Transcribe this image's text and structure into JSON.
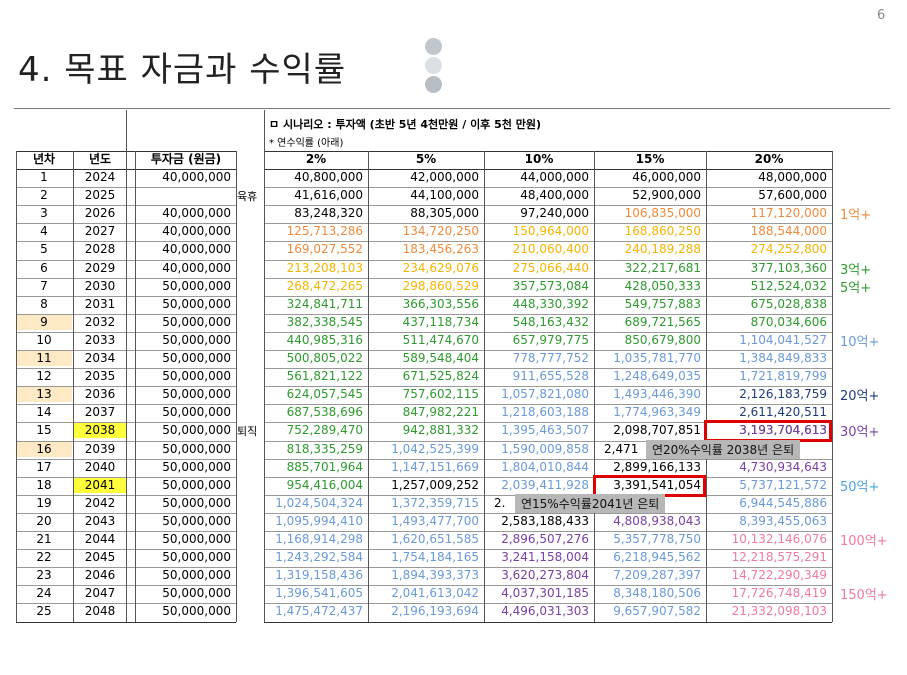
{
  "page_number": "6",
  "title": "4. 목표 자금과 수익률",
  "scenario": "ㅁ 시나리오 : 투자액 (초반 5년 4천만원 / 이후 5천 만원)",
  "note": "* 연수익률 (아래)",
  "headers": [
    "년차",
    "년도",
    "투자금 (원금)",
    "2%",
    "5%",
    "10%",
    "15%",
    "20%"
  ],
  "mid_labels": {
    "r2": "육휴",
    "r15": "퇴직"
  },
  "rows": [
    {
      "n": "1",
      "y": "2024",
      "p": "40,000,000",
      "v": [
        "40,800,000",
        "42,000,000",
        "44,000,000",
        "46,000,000",
        "48,000,000"
      ]
    },
    {
      "n": "2",
      "y": "2025",
      "p": "",
      "v": [
        "41,616,000",
        "44,100,000",
        "48,400,000",
        "52,900,000",
        "57,600,000"
      ]
    },
    {
      "n": "3",
      "y": "2026",
      "p": "40,000,000",
      "v": [
        "83,248,320",
        "88,305,000",
        "97,240,000",
        "106,835,000",
        "117,120,000"
      ]
    },
    {
      "n": "4",
      "y": "2027",
      "p": "40,000,000",
      "v": [
        "125,713,286",
        "134,720,250",
        "150,964,000",
        "168,860,250",
        "188,544,000"
      ]
    },
    {
      "n": "5",
      "y": "2028",
      "p": "40,000,000",
      "v": [
        "169,027,552",
        "183,456,263",
        "210,060,400",
        "240,189,288",
        "274,252,800"
      ]
    },
    {
      "n": "6",
      "y": "2029",
      "p": "40,000,000",
      "v": [
        "213,208,103",
        "234,629,076",
        "275,066,440",
        "322,217,681",
        "377,103,360"
      ]
    },
    {
      "n": "7",
      "y": "2030",
      "p": "50,000,000",
      "v": [
        "268,472,265",
        "298,860,529",
        "357,573,084",
        "428,050,333",
        "512,524,032"
      ]
    },
    {
      "n": "8",
      "y": "2031",
      "p": "50,000,000",
      "v": [
        "324,841,711",
        "366,303,556",
        "448,330,392",
        "549,757,883",
        "675,028,838"
      ]
    },
    {
      "n": "9",
      "y": "2032",
      "p": "50,000,000",
      "v": [
        "382,338,545",
        "437,118,734",
        "548,163,432",
        "689,721,565",
        "870,034,606"
      ]
    },
    {
      "n": "10",
      "y": "2033",
      "p": "50,000,000",
      "v": [
        "440,985,316",
        "511,474,670",
        "657,979,775",
        "850,679,800",
        "1,104,041,527"
      ]
    },
    {
      "n": "11",
      "y": "2034",
      "p": "50,000,000",
      "v": [
        "500,805,022",
        "589,548,404",
        "778,777,752",
        "1,035,781,770",
        "1,384,849,833"
      ]
    },
    {
      "n": "12",
      "y": "2035",
      "p": "50,000,000",
      "v": [
        "561,821,122",
        "671,525,824",
        "911,655,528",
        "1,248,649,035",
        "1,721,819,799"
      ]
    },
    {
      "n": "13",
      "y": "2036",
      "p": "50,000,000",
      "v": [
        "624,057,545",
        "757,602,115",
        "1,057,821,080",
        "1,493,446,390",
        "2,126,183,759"
      ]
    },
    {
      "n": "14",
      "y": "2037",
      "p": "50,000,000",
      "v": [
        "687,538,696",
        "847,982,221",
        "1,218,603,188",
        "1,774,963,349",
        "2,611,420,511"
      ]
    },
    {
      "n": "15",
      "y": "2038",
      "p": "50,000,000",
      "v": [
        "752,289,470",
        "942,881,332",
        "1,395,463,507",
        "2,098,707,851",
        "3,193,704,613"
      ]
    },
    {
      "n": "16",
      "y": "2039",
      "p": "50,000,000",
      "v": [
        "818,335,259",
        "1,042,525,399",
        "1,590,009,858",
        "2,471",
        "연20%수익률 2038년 은퇴"
      ]
    },
    {
      "n": "17",
      "y": "2040",
      "p": "50,000,000",
      "v": [
        "885,701,964",
        "1,147,151,669",
        "1,804,010,844",
        "2,899,166,133",
        "4,730,934,643"
      ]
    },
    {
      "n": "18",
      "y": "2041",
      "p": "50,000,000",
      "v": [
        "954,416,004",
        "1,257,009,252",
        "2,039,411,928",
        "3,391,541,054",
        "5,737,121,572"
      ]
    },
    {
      "n": "19",
      "y": "2042",
      "p": "50,000,000",
      "v": [
        "1,024,504,324",
        "1,372,359,715",
        "2.",
        "연15%수익률2041년 은퇴",
        "6,944,545,886"
      ]
    },
    {
      "n": "20",
      "y": "2043",
      "p": "50,000,000",
      "v": [
        "1,095,994,410",
        "1,493,477,700",
        "2,583,188,433",
        "4,808,938,043",
        "8,393,455,063"
      ]
    },
    {
      "n": "21",
      "y": "2044",
      "p": "50,000,000",
      "v": [
        "1,168,914,298",
        "1,620,651,585",
        "2,896,507,276",
        "5,357,778,750",
        "10,132,146,076"
      ]
    },
    {
      "n": "22",
      "y": "2045",
      "p": "50,000,000",
      "v": [
        "1,243,292,584",
        "1,754,184,165",
        "3,241,158,004",
        "6,218,945,562",
        "12,218,575,291"
      ]
    },
    {
      "n": "23",
      "y": "2046",
      "p": "50,000,000",
      "v": [
        "1,319,158,436",
        "1,894,393,373",
        "3,620,273,804",
        "7,209,287,397",
        "14,722,290,349"
      ]
    },
    {
      "n": "24",
      "y": "2047",
      "p": "50,000,000",
      "v": [
        "1,396,541,605",
        "2,041,613,042",
        "4,037,301,185",
        "8,348,180,506",
        "17,726,748,419"
      ]
    },
    {
      "n": "25",
      "y": "2048",
      "p": "50,000,000",
      "v": [
        "1,475,472,437",
        "2,196,193,694",
        "4,496,031,303",
        "9,657,907,582",
        "21,332,098,103"
      ]
    }
  ],
  "side_labels": [
    {
      "row": 3,
      "text": "1억+",
      "color": "#f08a3c"
    },
    {
      "row": 6,
      "text": "3억+",
      "color": "#2e9a2e"
    },
    {
      "row": 7,
      "text": "5억+",
      "color": "#2e9a2e"
    },
    {
      "row": 10,
      "text": "10억+",
      "color": "#6a9ad8"
    },
    {
      "row": 13,
      "text": "20억+",
      "color": "#1f3a7a"
    },
    {
      "row": 15,
      "text": "30억+",
      "color": "#7a3fa6"
    },
    {
      "row": 18,
      "text": "50억+",
      "color": "#4aa3df"
    },
    {
      "row": 21,
      "text": "100억+",
      "color": "#f07aa0"
    },
    {
      "row": 24,
      "text": "150억+",
      "color": "#f07aa0"
    }
  ],
  "callouts": {
    "c20": "연20%수익률 2038년 은퇴",
    "c15": "연15%수익률2041년 은퇴"
  },
  "colors": {
    "black": "#000000",
    "orange": "#f08a3c",
    "gold": "#f5b400",
    "green": "#2e9a2e",
    "blue": "#6a9ad8",
    "navy": "#1f3a7a",
    "purple": "#7a3fa6",
    "pink": "#f07aa0",
    "highlight_year": "#ffff3c",
    "highlight_row": "#fde9c4"
  }
}
